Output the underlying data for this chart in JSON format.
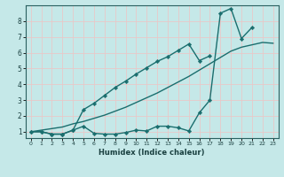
{
  "xlabel": "Humidex (Indice chaleur)",
  "bg_color": "#c5e8e8",
  "grid_color": "#e8c8c8",
  "line_color": "#1a6e6e",
  "xlim": [
    -0.5,
    23.5
  ],
  "ylim": [
    0.6,
    9.0
  ],
  "yticks": [
    1,
    2,
    3,
    4,
    5,
    6,
    7,
    8
  ],
  "x": [
    0,
    1,
    2,
    3,
    4,
    5,
    6,
    7,
    8,
    9,
    10,
    11,
    12,
    13,
    14,
    15,
    16,
    17,
    18,
    19,
    20,
    21,
    22,
    23
  ],
  "y_jagged": [
    1.0,
    1.0,
    0.85,
    0.85,
    1.1,
    1.35,
    0.9,
    0.85,
    0.85,
    0.95,
    1.1,
    1.05,
    1.35,
    1.35,
    1.25,
    1.05,
    2.2,
    3.0,
    8.5,
    8.8,
    6.9,
    7.6,
    null,
    null
  ],
  "y_linear": [
    1.0,
    1.1,
    1.2,
    1.3,
    1.5,
    1.65,
    1.85,
    2.05,
    2.3,
    2.55,
    2.85,
    3.15,
    3.45,
    3.8,
    4.15,
    4.5,
    4.9,
    5.3,
    5.7,
    6.1,
    6.35,
    6.5,
    6.65,
    6.6
  ],
  "y_early_rise": [
    1.0,
    1.0,
    0.85,
    0.85,
    1.1,
    2.4,
    2.8,
    3.3,
    3.8,
    4.2,
    4.65,
    5.05,
    5.45,
    5.75,
    6.15,
    6.55,
    5.5,
    5.8,
    null,
    null,
    null,
    null,
    null,
    null
  ]
}
